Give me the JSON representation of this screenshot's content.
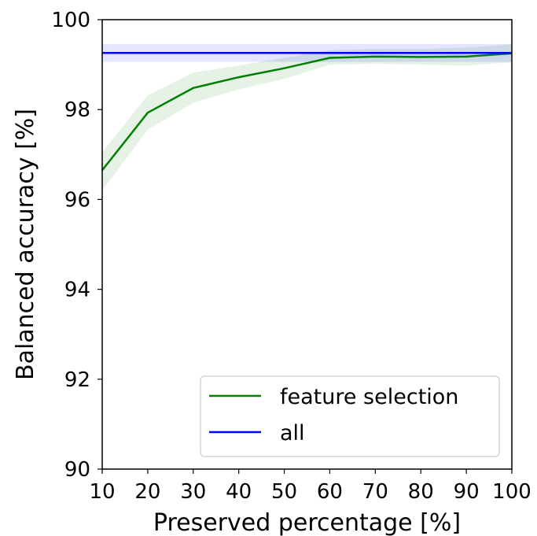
{
  "chart_data": {
    "type": "line",
    "title": "",
    "xlabel": "Preserved percentage [%]",
    "ylabel": "Balanced accuracy [%]",
    "xlim": [
      10,
      100
    ],
    "ylim": [
      90,
      100
    ],
    "xticks": [
      10,
      20,
      30,
      40,
      50,
      60,
      70,
      80,
      90,
      100
    ],
    "yticks": [
      90,
      92,
      94,
      96,
      98,
      100
    ],
    "grid": false,
    "legend_position": "lower-right",
    "series": [
      {
        "name": "feature selection",
        "color": "#008000",
        "x": [
          10,
          20,
          30,
          40,
          50,
          60,
          70,
          80,
          90,
          100
        ],
        "y": [
          96.65,
          97.93,
          98.48,
          98.72,
          98.92,
          99.15,
          99.18,
          99.17,
          99.18,
          99.25
        ],
        "y_lower": [
          96.2,
          97.55,
          98.15,
          98.45,
          98.68,
          99.0,
          99.02,
          99.0,
          98.98,
          99.05
        ],
        "y_upper": [
          97.05,
          98.32,
          98.82,
          98.98,
          99.15,
          99.32,
          99.35,
          99.35,
          99.38,
          99.45
        ]
      },
      {
        "name": "all",
        "color": "#0000ff",
        "x": [
          10,
          100
        ],
        "y": [
          99.26,
          99.26
        ],
        "y_lower": [
          99.06,
          99.06
        ],
        "y_upper": [
          99.46,
          99.46
        ]
      }
    ]
  }
}
